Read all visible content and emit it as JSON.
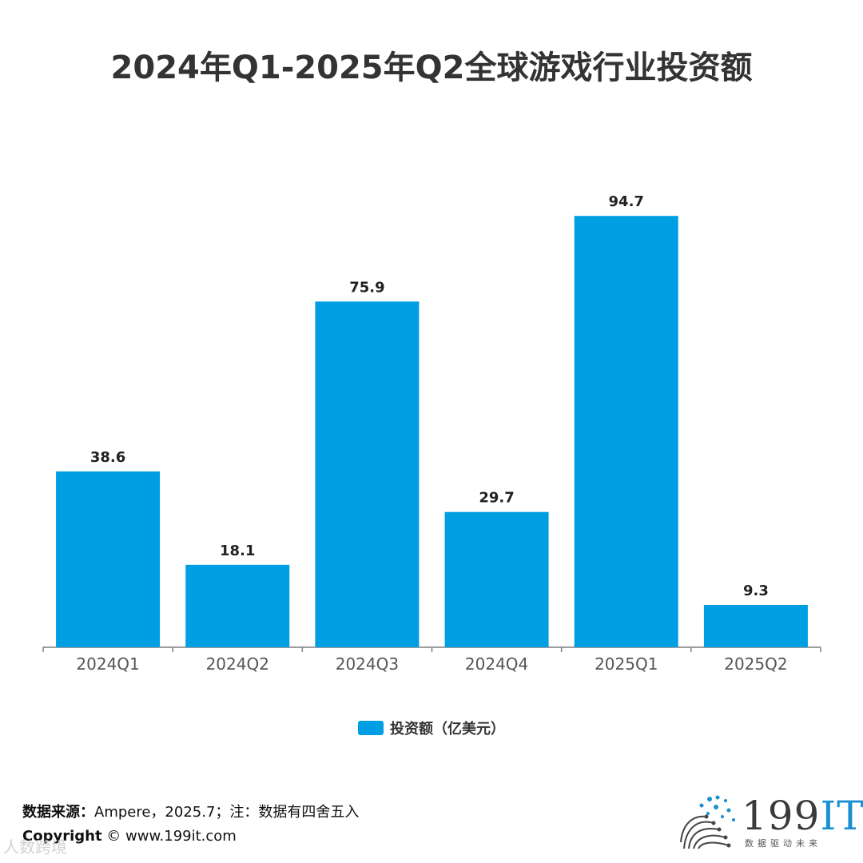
{
  "title": "2024年Q1-2025年Q2全球游戏行业投资额",
  "legend": {
    "label": "投资额（亿美元）"
  },
  "footer": {
    "source_label": "数据来源：",
    "source_text": "Ampere，2025.7；注：数据有四舍五入",
    "copyright_label": "Copyright",
    "copyright_text": "©  www.199it.com"
  },
  "watermark": "人数跨境",
  "logo": {
    "main": "199",
    "suffix": "IT",
    "tagline": "数据驱动未来"
  },
  "colors": {
    "bar": "#009FE3",
    "axis": "#7f7f7f",
    "text": "#333333"
  },
  "chart_data": {
    "type": "bar",
    "title": "2024年Q1-2025年Q2全球游戏行业投资额",
    "categories": [
      "2024Q1",
      "2024Q2",
      "2024Q3",
      "2024Q4",
      "2025Q1",
      "2025Q2"
    ],
    "series": [
      {
        "name": "投资额（亿美元）",
        "values": [
          38.6,
          18.1,
          75.9,
          29.7,
          94.7,
          9.3
        ]
      }
    ],
    "value_labels": [
      "38.6",
      "18.1",
      "75.9",
      "29.7",
      "94.7",
      "9.3"
    ],
    "xlabel": "",
    "ylabel": "",
    "ylim": [
      0,
      100
    ],
    "grid": false,
    "legend_position": "bottom"
  }
}
